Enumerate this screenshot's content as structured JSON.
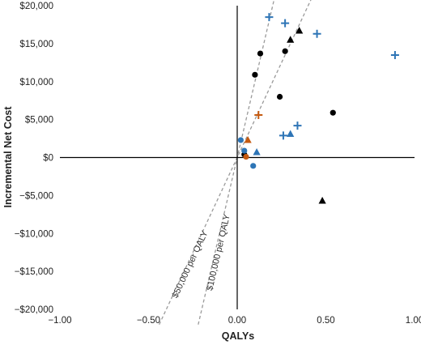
{
  "chart_data": {
    "type": "scatter",
    "title": "",
    "xlabel": "QALYs",
    "ylabel": "Incremental Net Cost",
    "xlim": [
      -1.0,
      1.0
    ],
    "ylim": [
      -20000,
      20000
    ],
    "x_ticks": [
      -1.0,
      -0.5,
      0.0,
      0.5,
      1.0
    ],
    "x_tick_labels": [
      "−1.00",
      "−0.50",
      "0.00",
      "0.50",
      "1.00"
    ],
    "y_ticks": [
      20000,
      15000,
      10000,
      5000,
      0,
      -5000,
      -10000,
      -15000,
      -20000
    ],
    "y_tick_labels": [
      "$20,000",
      "$15,000",
      "$10,000",
      "$5,000",
      "$0",
      "−$5,000",
      "−$10,000",
      "−$15,000",
      "−$20,000"
    ],
    "grid": false,
    "legend": "none",
    "reference_lines": [
      {
        "label": "$50,000 per QALY",
        "slope": 50000,
        "x_range": [
          -0.44,
          0.44
        ]
      },
      {
        "label": "$100,000 per QALY",
        "slope": 100000,
        "x_range": [
          -0.22,
          0.22
        ]
      }
    ],
    "series": [
      {
        "marker": "circle",
        "color": "#000000",
        "points": [
          {
            "x": 0.13,
            "y": 13700
          },
          {
            "x": 0.27,
            "y": 14000
          },
          {
            "x": 0.1,
            "y": 10900
          },
          {
            "x": 0.24,
            "y": 8000
          },
          {
            "x": 0.54,
            "y": 5900
          },
          {
            "x": 0.04,
            "y": 400
          }
        ]
      },
      {
        "marker": "triangle",
        "color": "#000000",
        "points": [
          {
            "x": 0.35,
            "y": 16700
          },
          {
            "x": 0.3,
            "y": 15500
          },
          {
            "x": 0.48,
            "y": -5700
          }
        ]
      },
      {
        "marker": "plus",
        "color": "#2e75b6",
        "points": [
          {
            "x": 0.18,
            "y": 18500
          },
          {
            "x": 0.27,
            "y": 17700
          },
          {
            "x": 0.45,
            "y": 16300
          },
          {
            "x": 0.89,
            "y": 13500
          },
          {
            "x": 0.34,
            "y": 4200
          },
          {
            "x": 0.26,
            "y": 2900
          }
        ]
      },
      {
        "marker": "triangle",
        "color": "#2e75b6",
        "points": [
          {
            "x": 0.3,
            "y": 3100
          },
          {
            "x": 0.11,
            "y": 700
          }
        ]
      },
      {
        "marker": "circle",
        "color": "#2e75b6",
        "points": [
          {
            "x": 0.02,
            "y": 2300
          },
          {
            "x": 0.04,
            "y": 900
          },
          {
            "x": 0.09,
            "y": -1100
          }
        ]
      },
      {
        "marker": "plus",
        "color": "#c55a11",
        "points": [
          {
            "x": 0.12,
            "y": 5600
          }
        ]
      },
      {
        "marker": "triangle",
        "color": "#c55a11",
        "points": [
          {
            "x": 0.06,
            "y": 2300
          }
        ]
      },
      {
        "marker": "circle",
        "color": "#c55a11",
        "points": [
          {
            "x": 0.05,
            "y": 100
          }
        ]
      }
    ]
  }
}
